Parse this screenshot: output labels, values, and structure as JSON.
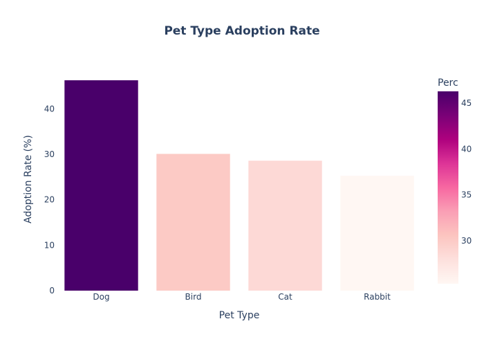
{
  "chart_data": {
    "type": "bar",
    "title": "Pet Type Adoption Rate",
    "xlabel": "Pet Type",
    "ylabel": "Adoption Rate (%)",
    "categories": [
      "Dog",
      "Bird",
      "Cat",
      "Rabbit"
    ],
    "values": [
      46.3,
      30.1,
      28.6,
      25.3
    ],
    "ylim": [
      0,
      46.3
    ],
    "yticks": [
      0,
      10,
      20,
      30,
      40
    ],
    "grid": false,
    "legend": "none",
    "colorbar": {
      "title": "Perc",
      "range": [
        25.3,
        46.3
      ],
      "ticks": [
        30,
        35,
        40,
        45
      ],
      "colorscale": [
        "#fff7f3",
        "#fde0dd",
        "#fcc5c0",
        "#fa9fb5",
        "#f768a1",
        "#dd3497",
        "#ae017e",
        "#7a0177",
        "#49006a"
      ],
      "placement": "right"
    }
  }
}
